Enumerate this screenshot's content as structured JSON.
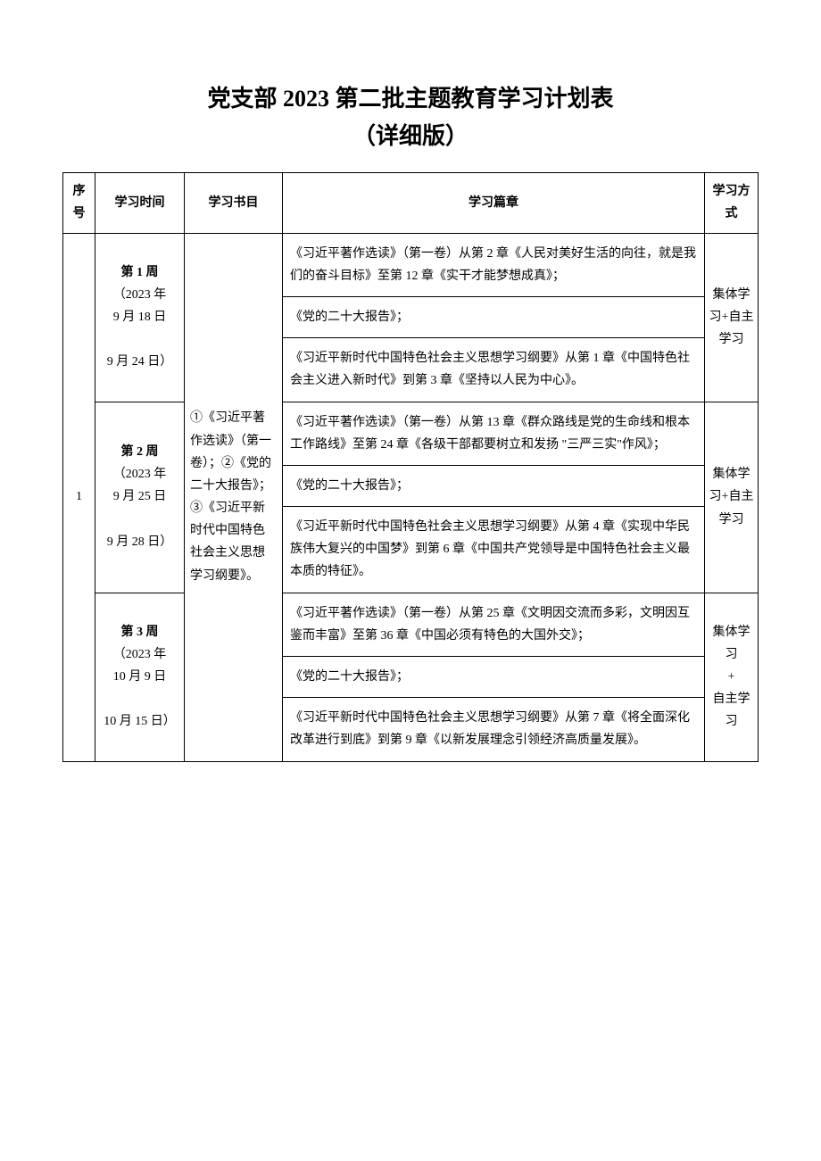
{
  "title_line1": "党支部 2023 第二批主题教育学习计划表",
  "title_line2": "（详细版）",
  "headers": {
    "seq": "序号",
    "time": "学习时间",
    "book": "学习书目",
    "chapter": "学习篇章",
    "mode": "学习方式"
  },
  "seq_value": "1",
  "book_text": "①《习近平著作选读》（第一卷）；②《党的二十大报告》；③《习近平新时代中国特色社会主义思想学习纲要》。",
  "rows": [
    {
      "week_label": "第 1 周",
      "date_range_1": "（2023 年",
      "date_range_2": "9 月 18 日",
      "date_range_gap": "",
      "date_range_3": "9 月 24 日）",
      "chapters": [
        "《习近平著作选读》（第一卷）从第 2 章《人民对美好生活的向往，就是我们的奋斗目标》至第 12 章《实干才能梦想成真》；",
        "《党的二十大报告》；",
        "《习近平新时代中国特色社会主义思想学习纲要》从第 1 章《中国特色社会主义进入新时代》到第 3 章《坚持以人民为中心》。"
      ],
      "mode": "集体学习+自主学习"
    },
    {
      "week_label": "第 2 周",
      "date_range_1": "（2023 年",
      "date_range_2": "9 月 25 日",
      "date_range_gap": "",
      "date_range_3": "9 月 28 日）",
      "chapters": [
        "《习近平著作选读》（第一卷）从第 13 章《群众路线是党的生命线和根本工作路线》至第 24 章《各级干部都要树立和发扬\n\"三严三实\"作风》；",
        "《党的二十大报告》；",
        "《习近平新时代中国特色社会主义思想学习纲要》从第 4 章《实现中华民族伟大复兴的中国梦》到第 6 章《中国共产党领导是中国特色社会主义最本质的特征》。"
      ],
      "mode": "集体学习+自主学习"
    },
    {
      "week_label": "第 3 周",
      "date_range_1": "（2023 年",
      "date_range_2": "10 月 9 日",
      "date_range_gap": "",
      "date_range_3": "10 月 15 日）",
      "chapters": [
        "《习近平著作选读》（第一卷）从第 25 章《文明因交流而多彩，文明因互鉴而丰富》至第 36 章《中国必须有特色的大国外交》；",
        "《党的二十大报告》；",
        "《习近平新时代中国特色社会主义思想学习纲要》从第 7 章《将全面深化改革进行到底》到第 9 章《以新发展理念引领经济高质量发展》。"
      ],
      "mode": "集体学习+自主学习"
    }
  ],
  "mode_row3_lines": [
    "集体学习",
    "+",
    "自主学习"
  ]
}
